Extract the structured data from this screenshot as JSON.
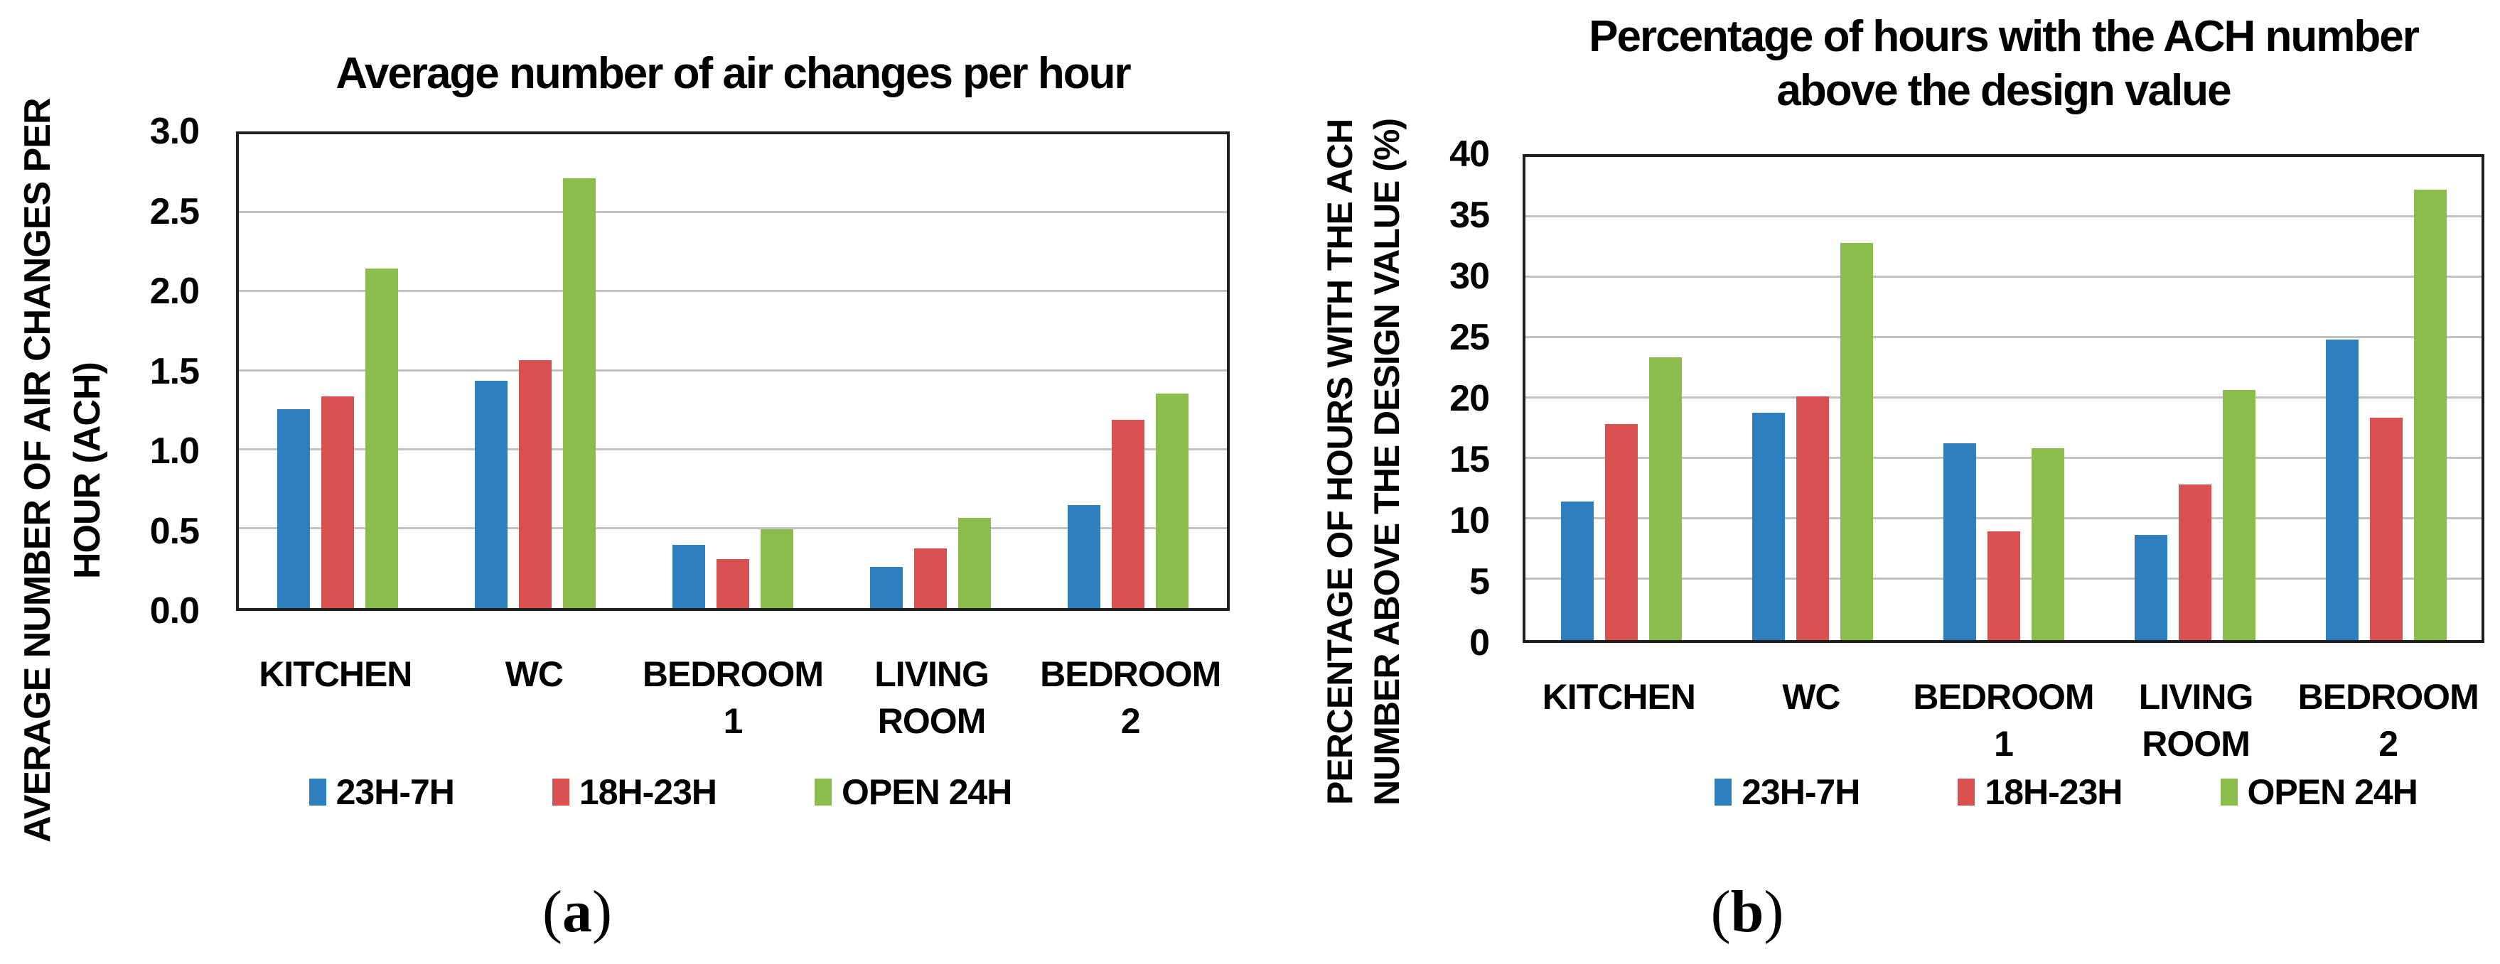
{
  "figure": {
    "panel_a_caption": {
      "open": "(",
      "letter": "a",
      "close": ")"
    },
    "panel_b_caption": {
      "open": "(",
      "letter": "b",
      "close": ")"
    }
  },
  "colors": {
    "series_blue": "#2E7FBF",
    "series_red": "#D95050",
    "series_green": "#8BBD4D",
    "gridline": "#C2C2C2",
    "axis_border": "#1F1F1F",
    "text": "#000000"
  },
  "chart_data": [
    {
      "type": "bar",
      "title_lines": [
        "Average number of air changes per hour"
      ],
      "ylabel_lines": [
        "AVERAGE NUMBER OF AIR CHANGES PER",
        "HOUR (ACH)"
      ],
      "xlabel": "",
      "categories": [
        [
          "KITCHEN"
        ],
        [
          "WC"
        ],
        [
          "BEDROOM",
          "1"
        ],
        [
          "LIVING",
          "ROOM"
        ],
        [
          "BEDROOM",
          "2"
        ]
      ],
      "series": [
        {
          "name": "23H-7H",
          "color": "#2E7FBF",
          "values": [
            1.26,
            1.44,
            0.4,
            0.26,
            0.65
          ]
        },
        {
          "name": "18H-23H",
          "color": "#D95050",
          "values": [
            1.34,
            1.57,
            0.31,
            0.38,
            1.19
          ]
        },
        {
          "name": "OPEN 24H",
          "color": "#8BBD4D",
          "values": [
            2.15,
            2.72,
            0.5,
            0.57,
            1.36
          ]
        }
      ],
      "ylim": [
        0,
        3.0
      ],
      "yticks": [
        {
          "value": 0,
          "label": "0.0"
        },
        {
          "value": 0.5,
          "label": "0.5"
        },
        {
          "value": 1,
          "label": "1.0"
        },
        {
          "value": 1.5,
          "label": "1.5"
        },
        {
          "value": 2,
          "label": "2.0"
        },
        {
          "value": 2.5,
          "label": "2.5"
        },
        {
          "value": 3,
          "label": "3.0"
        }
      ],
      "grid": true,
      "legend_position": "bottom"
    },
    {
      "type": "bar",
      "title_lines": [
        "Percentage of hours with the ACH number",
        "above the design value"
      ],
      "ylabel_lines": [
        "PERCENTAGE OF HOURS WITH THE ACH",
        "NUMBER ABOVE THE DESIGN VALUE (%)"
      ],
      "xlabel": "",
      "categories": [
        [
          "KITCHEN"
        ],
        [
          "WC"
        ],
        [
          "BEDROOM",
          "1"
        ],
        [
          "LIVING",
          "ROOM"
        ],
        [
          "BEDROOM",
          "2"
        ]
      ],
      "series": [
        {
          "name": "23H-7H",
          "color": "#2E7FBF",
          "values": [
            11.5,
            18.8,
            16.3,
            8.7,
            24.9
          ]
        },
        {
          "name": "18H-23H",
          "color": "#D95050",
          "values": [
            17.9,
            20.2,
            9.0,
            12.9,
            18.4
          ]
        },
        {
          "name": "OPEN 24H",
          "color": "#8BBD4D",
          "values": [
            23.4,
            32.9,
            15.9,
            20.7,
            37.3
          ]
        }
      ],
      "ylim": [
        0,
        40
      ],
      "yticks": [
        {
          "value": 0,
          "label": "0"
        },
        {
          "value": 5,
          "label": "5"
        },
        {
          "value": 10,
          "label": "10"
        },
        {
          "value": 15,
          "label": "15"
        },
        {
          "value": 20,
          "label": "20"
        },
        {
          "value": 25,
          "label": "25"
        },
        {
          "value": 30,
          "label": "30"
        },
        {
          "value": 35,
          "label": "35"
        },
        {
          "value": 40,
          "label": "40"
        }
      ],
      "grid": true,
      "legend_position": "bottom"
    }
  ]
}
